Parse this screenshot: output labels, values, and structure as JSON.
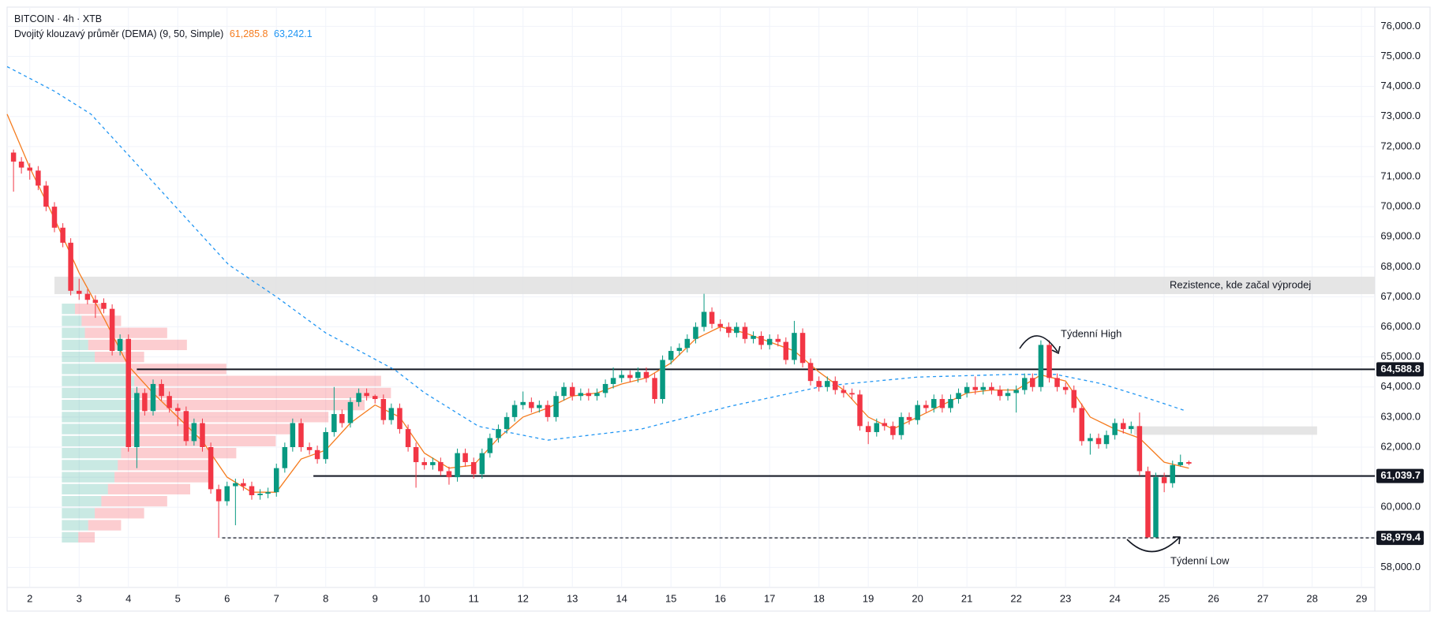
{
  "chart_data": {
    "type": "candlestick",
    "title": "BITCOIN · 4h · XTB",
    "indicator_name": "Dvojitý klouzavý průměr (DEMA) (9, 50, Simple)",
    "xlim": [
      1.54,
      29.27
    ],
    "ylim": [
      57330,
      76640
    ],
    "xticks": [
      2,
      3,
      4,
      5,
      6,
      7,
      8,
      9,
      10,
      11,
      12,
      13,
      14,
      15,
      16,
      17,
      18,
      19,
      20,
      21,
      22,
      23,
      24,
      25,
      26,
      27,
      28,
      29
    ],
    "yticks": [
      {
        "value": 58000,
        "label": "58,000.0"
      },
      {
        "value": 59000,
        "label": "59,000.0"
      },
      {
        "value": 60000,
        "label": "60,000.0"
      },
      {
        "value": 61000,
        "label": "61,000.0"
      },
      {
        "value": 62000,
        "label": "62,000.0"
      },
      {
        "value": 63000,
        "label": "63,000.0"
      },
      {
        "value": 64000,
        "label": "64,000.0"
      },
      {
        "value": 65000,
        "label": "65,000.0"
      },
      {
        "value": 66000,
        "label": "66,000.0"
      },
      {
        "value": 67000,
        "label": "67,000.0"
      },
      {
        "value": 68000,
        "label": "68,000.0"
      },
      {
        "value": 69000,
        "label": "69,000.0"
      },
      {
        "value": 70000,
        "label": "70,000.0"
      },
      {
        "value": 71000,
        "label": "71,000.0"
      },
      {
        "value": 72000,
        "label": "72,000.0"
      },
      {
        "value": 73000,
        "label": "73,000.0"
      },
      {
        "value": 74000,
        "label": "74,000.0"
      },
      {
        "value": 75000,
        "label": "75,000.0"
      },
      {
        "value": 76000,
        "label": "76,000.0"
      }
    ],
    "grid": true,
    "candles": {
      "up_color": "#089981",
      "down_color": "#f23645",
      "x": [
        1.67,
        1.83,
        2,
        2.17,
        2.33,
        2.5,
        2.67,
        2.83,
        3,
        3.17,
        3.33,
        3.5,
        3.67,
        3.83,
        4,
        4.17,
        4.33,
        4.5,
        4.67,
        4.83,
        5,
        5.17,
        5.33,
        5.5,
        5.67,
        5.83,
        6,
        6.17,
        6.33,
        6.5,
        6.67,
        6.83,
        7,
        7.17,
        7.33,
        7.5,
        7.67,
        7.83,
        8,
        8.17,
        8.33,
        8.5,
        8.67,
        8.83,
        9,
        9.17,
        9.33,
        9.5,
        9.67,
        9.83,
        10,
        10.17,
        10.33,
        10.5,
        10.67,
        10.83,
        11,
        11.17,
        11.33,
        11.5,
        11.67,
        11.83,
        12,
        12.17,
        12.33,
        12.5,
        12.67,
        12.83,
        13,
        13.17,
        13.33,
        13.5,
        13.67,
        13.83,
        14,
        14.17,
        14.33,
        14.5,
        14.67,
        14.83,
        15,
        15.17,
        15.33,
        15.5,
        15.67,
        15.83,
        16,
        16.17,
        16.33,
        16.5,
        16.67,
        16.83,
        17,
        17.17,
        17.33,
        17.5,
        17.67,
        17.83,
        18,
        18.17,
        18.33,
        18.5,
        18.67,
        18.83,
        19,
        19.17,
        19.33,
        19.5,
        19.67,
        19.83,
        20,
        20.17,
        20.33,
        20.5,
        20.67,
        20.83,
        21,
        21.17,
        21.33,
        21.5,
        21.67,
        21.83,
        22,
        22.17,
        22.33,
        22.5,
        22.67,
        22.83,
        23,
        23.17,
        23.33,
        23.5,
        23.67,
        23.83,
        24,
        24.17,
        24.33,
        24.5,
        24.67,
        24.83,
        25,
        25.17,
        25.33,
        25.5
      ],
      "open": [
        71800,
        71500,
        71300,
        71200,
        70700,
        70000,
        69300,
        68800,
        67200,
        67100,
        66900,
        66800,
        66600,
        65200,
        65600,
        62000,
        63800,
        63200,
        64100,
        63700,
        63300,
        63200,
        62200,
        62800,
        62000,
        60600,
        60200,
        60700,
        60800,
        60700,
        60400,
        60450,
        60500,
        61300,
        62000,
        62800,
        62000,
        61900,
        61600,
        62500,
        63100,
        62800,
        63500,
        63800,
        63700,
        63600,
        62900,
        63300,
        62600,
        62000,
        61500,
        61400,
        61500,
        61200,
        61000,
        61800,
        61500,
        61100,
        61800,
        62300,
        62600,
        63000,
        63400,
        63500,
        63300,
        63400,
        63000,
        63700,
        64000,
        63700,
        63800,
        63700,
        63800,
        64100,
        64300,
        64400,
        64300,
        64500,
        64300,
        63600,
        64900,
        65200,
        65300,
        65600,
        66000,
        66500,
        66100,
        66000,
        65800,
        66000,
        65600,
        65700,
        65400,
        65600,
        65500,
        64900,
        65800,
        64800,
        64200,
        64000,
        64200,
        63900,
        63800,
        63750,
        62700,
        62500,
        62800,
        62700,
        62400,
        63000,
        62900,
        63400,
        63300,
        63600,
        63300,
        63600,
        63800,
        64000,
        63900,
        64000,
        63900,
        63700,
        63800,
        63900,
        64300,
        64000,
        65400,
        64300,
        64000,
        63900,
        63300,
        62200,
        62300,
        62100,
        62400,
        62800,
        62600,
        62700,
        61200,
        59000,
        61000,
        60800,
        61400,
        61500
      ],
      "high": [
        71900,
        71650,
        71450,
        71350,
        70850,
        70150,
        69450,
        68950,
        67600,
        67250,
        67050,
        66950,
        66750,
        65750,
        65750,
        64000,
        63950,
        64250,
        64250,
        63850,
        63450,
        63350,
        62950,
        62950,
        62150,
        60750,
        60850,
        60950,
        60950,
        60850,
        60600,
        60650,
        61450,
        62150,
        62950,
        62950,
        62150,
        62050,
        62650,
        64000,
        63250,
        63650,
        63950,
        63950,
        63750,
        63750,
        63450,
        63450,
        62750,
        62150,
        61650,
        61650,
        61650,
        61350,
        61950,
        61950,
        61650,
        61950,
        62450,
        62750,
        63150,
        63550,
        63850,
        63650,
        63550,
        63550,
        63850,
        64150,
        64150,
        63950,
        63950,
        63950,
        64250,
        64650,
        64550,
        64550,
        64650,
        64650,
        64450,
        65050,
        65350,
        65450,
        65750,
        66150,
        67100,
        66650,
        66250,
        66150,
        66150,
        66150,
        65850,
        65850,
        65750,
        65750,
        65650,
        66200,
        65950,
        64950,
        64350,
        64350,
        64350,
        64050,
        63950,
        63900,
        62850,
        62950,
        62950,
        62850,
        63150,
        63150,
        63550,
        63550,
        63750,
        63750,
        63750,
        63950,
        64150,
        64350,
        64150,
        64150,
        64050,
        63950,
        64050,
        64450,
        64450,
        65550,
        65550,
        64450,
        64150,
        64050,
        63450,
        62450,
        62450,
        62550,
        62950,
        62950,
        62850,
        63150,
        61350,
        61150,
        61150,
        61550,
        61750,
        61550
      ],
      "low": [
        70500,
        71100,
        70900,
        70550,
        69850,
        69150,
        68650,
        67050,
        66900,
        66750,
        66300,
        66450,
        65050,
        65050,
        61850,
        61300,
        63050,
        63050,
        63550,
        63150,
        62700,
        62050,
        62050,
        61850,
        60450,
        58980,
        60050,
        59400,
        60550,
        60250,
        60250,
        60300,
        60350,
        61150,
        61850,
        61850,
        61750,
        61450,
        61450,
        62350,
        62650,
        62650,
        63350,
        63550,
        63450,
        62750,
        62750,
        62450,
        61850,
        60650,
        61250,
        61250,
        61050,
        60750,
        60850,
        61350,
        60950,
        60950,
        61650,
        62150,
        62450,
        62850,
        63250,
        63150,
        63150,
        62850,
        62850,
        63550,
        63550,
        63550,
        63550,
        63550,
        63650,
        63950,
        64150,
        64150,
        64150,
        64150,
        63450,
        63450,
        64750,
        65050,
        65150,
        65450,
        65850,
        65950,
        65850,
        65650,
        65650,
        65450,
        65450,
        65250,
        65250,
        65350,
        64750,
        64750,
        64650,
        64050,
        63850,
        63850,
        63750,
        63650,
        63600,
        62550,
        62100,
        62350,
        62550,
        62250,
        62250,
        62750,
        62750,
        63150,
        63150,
        63150,
        63150,
        63450,
        63650,
        63750,
        63750,
        63750,
        63550,
        63550,
        63150,
        63750,
        63850,
        63850,
        64150,
        63850,
        63750,
        63150,
        62050,
        61750,
        61950,
        61950,
        62250,
        62450,
        62450,
        61050,
        58980,
        58990,
        60500,
        60650,
        61350,
        61400
      ],
      "close": [
        71500,
        71300,
        71200,
        70700,
        70000,
        69300,
        68800,
        67200,
        67100,
        66900,
        66800,
        66600,
        65200,
        65600,
        62000,
        63800,
        63200,
        64100,
        63700,
        63300,
        63200,
        62200,
        62800,
        62000,
        60600,
        60200,
        60700,
        60800,
        60700,
        60400,
        60450,
        60500,
        61300,
        62000,
        62800,
        62000,
        61900,
        61600,
        62500,
        63100,
        62800,
        63500,
        63800,
        63700,
        63600,
        62900,
        63300,
        62600,
        62000,
        61500,
        61400,
        61500,
        61200,
        61000,
        61800,
        61500,
        61100,
        61800,
        62300,
        62600,
        63000,
        63400,
        63500,
        63300,
        63400,
        63000,
        63700,
        64000,
        63700,
        63800,
        63700,
        63800,
        64100,
        64300,
        64400,
        64300,
        64500,
        64300,
        63600,
        64900,
        65200,
        65300,
        65600,
        66000,
        66500,
        66100,
        66000,
        65800,
        66000,
        65600,
        65700,
        65400,
        65600,
        65500,
        64900,
        65800,
        64800,
        64200,
        64000,
        64200,
        63900,
        63800,
        63750,
        62700,
        62500,
        62800,
        62700,
        62400,
        63000,
        62900,
        63400,
        63300,
        63600,
        63300,
        63600,
        63800,
        64000,
        63900,
        64000,
        63900,
        63700,
        63800,
        63900,
        64300,
        64000,
        65400,
        64300,
        64000,
        63900,
        63300,
        62200,
        62300,
        62100,
        62400,
        62800,
        62600,
        62700,
        61200,
        59000,
        61000,
        60800,
        61400,
        61500,
        61450
      ]
    },
    "lines": [
      {
        "color": "#f57c1f",
        "dashed": false,
        "current": "61,285.8",
        "x": [
          1.54,
          2,
          2.5,
          3,
          3.5,
          4,
          4.5,
          5,
          5.5,
          6,
          6.5,
          7,
          7.5,
          8,
          8.5,
          9,
          9.5,
          10,
          10.5,
          11,
          11.5,
          12,
          12.5,
          13,
          13.5,
          14,
          14.5,
          15,
          15.5,
          16,
          16.5,
          17,
          17.5,
          18,
          18.5,
          19,
          19.5,
          20,
          20.5,
          21,
          21.5,
          22,
          22.5,
          23,
          23.5,
          24,
          24.5,
          25,
          25.5
        ],
        "values": [
          73080,
          71300,
          69600,
          67800,
          66300,
          64700,
          63800,
          63000,
          62200,
          61000,
          60500,
          60500,
          61600,
          61900,
          62800,
          63400,
          63000,
          61800,
          61300,
          61400,
          62300,
          63000,
          63300,
          63700,
          63800,
          64100,
          64300,
          64800,
          65600,
          66000,
          65800,
          65500,
          65200,
          64500,
          63900,
          63000,
          62600,
          63000,
          63400,
          63800,
          63900,
          63900,
          64400,
          64200,
          63000,
          62600,
          62300,
          61500,
          61300
        ]
      },
      {
        "color": "#2196f3",
        "dashed": true,
        "current": "63,242.1",
        "x": [
          1.54,
          2.5,
          3.24,
          4.17,
          5.1,
          6.03,
          7,
          8,
          9.4,
          10,
          11.1,
          12.5,
          14.4,
          16.2,
          18.1,
          20,
          21.9,
          22.8,
          23.7,
          24.6,
          25.45
        ],
        "values": [
          74660,
          73840,
          73080,
          71410,
          69740,
          68070,
          67000,
          65800,
          64570,
          63810,
          62690,
          62230,
          62600,
          63360,
          64030,
          64330,
          64420,
          64420,
          64120,
          63660,
          63200
        ]
      }
    ],
    "hlines": [
      {
        "value": 64588.8,
        "label": "64,588.8",
        "start": 4.17,
        "dashed": false
      },
      {
        "value": 61039.7,
        "label": "61,039.7",
        "start": 7.75,
        "dashed": false
      },
      {
        "value": 58979.4,
        "label": "58,979.4",
        "start": 5.9,
        "dashed": true
      }
    ],
    "zones": [
      {
        "x": [
          2.5,
          29.27
        ],
        "y": [
          67090,
          67670
        ]
      },
      {
        "x": [
          24.39,
          28.1
        ],
        "y": [
          62410,
          62690
        ]
      }
    ],
    "volume_profile": {
      "x_start": 2.65,
      "levels": [
        59000,
        59400,
        59800,
        60200,
        60600,
        61000,
        61400,
        61800,
        62200,
        62600,
        63000,
        63400,
        63800,
        64200,
        64600,
        65000,
        65400,
        65800,
        66200,
        66600
      ],
      "buy": [
        5,
        8,
        10,
        12,
        14,
        16,
        17,
        18,
        20,
        20,
        21,
        22,
        22,
        22,
        20,
        10,
        8,
        7,
        6,
        4
      ],
      "sell": [
        5,
        10,
        15,
        20,
        25,
        30,
        28,
        35,
        45,
        50,
        60,
        70,
        78,
        75,
        30,
        15,
        30,
        25,
        12,
        8
      ]
    },
    "annotations": [
      "Rezistence, kde začal výprodej",
      "Týdenní High",
      "Týdenní Low"
    ]
  }
}
